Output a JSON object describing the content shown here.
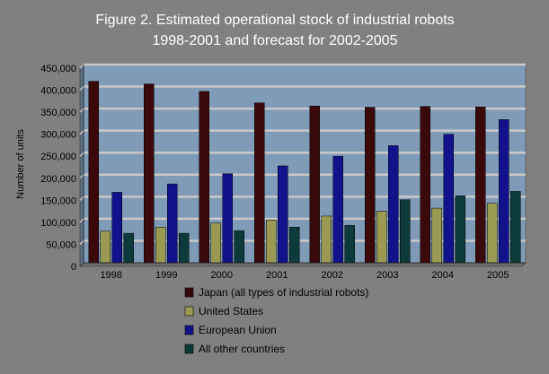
{
  "chart_data": {
    "type": "bar",
    "title_lines": [
      "Figure 2.  Estimated operational stock of industrial robots",
      "1998-2001 and forecast for 2002-2005"
    ],
    "xlabel": "",
    "ylabel": "Number of units",
    "categories": [
      "1998",
      "1999",
      "2000",
      "2001",
      "2002",
      "2003",
      "2004",
      "2005"
    ],
    "ylim": [
      0,
      450000
    ],
    "yticks": [
      0,
      50000,
      100000,
      150000,
      200000,
      250000,
      300000,
      350000,
      400000,
      450000
    ],
    "ytick_labels": [
      "0",
      "50,000",
      "100,000",
      "150,000",
      "200,000",
      "250,000",
      "300,000",
      "350,000",
      "400,000",
      "450,000"
    ],
    "grid": true,
    "legend_position": "bottom",
    "series": [
      {
        "name": "Japan (all types of industrial robots)",
        "color": "#3a0a0a",
        "values": [
          412000,
          406000,
          389000,
          363000,
          356000,
          353000,
          355000,
          354000
        ]
      },
      {
        "name": "United States",
        "color": "#9a9a52",
        "values": [
          72000,
          81000,
          90000,
          97000,
          106000,
          117000,
          124000,
          135000
        ]
      },
      {
        "name": "European Union",
        "color": "#12128c",
        "values": [
          160000,
          179000,
          202000,
          220000,
          242000,
          266000,
          292000,
          325000
        ]
      },
      {
        "name": "All other countries",
        "color": "#0d3a3a",
        "values": [
          67000,
          67000,
          73000,
          81000,
          85000,
          143000,
          152000,
          162000
        ]
      }
    ],
    "colors": {
      "background": "#808080",
      "plot_area": "#7f9bb8",
      "gridline": "#c8c8c8",
      "title": "#ffffff"
    }
  }
}
